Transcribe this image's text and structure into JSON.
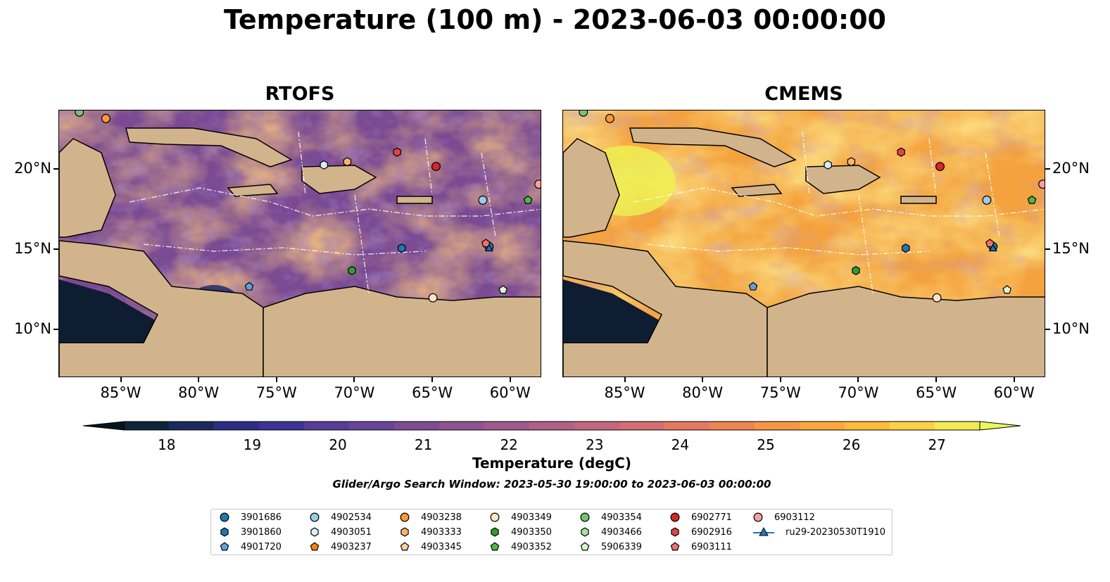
{
  "title": "Temperature (100 m) - 2023-06-03 00:00:00",
  "panels": [
    {
      "title": "RTOFS"
    },
    {
      "title": "CMEMS"
    }
  ],
  "map_extent": {
    "lon": [
      -89,
      -58
    ],
    "lat": [
      7,
      23.7
    ]
  },
  "lon_ticks": [
    {
      "lon": -85,
      "label": "85°W"
    },
    {
      "lon": -80,
      "label": "80°W"
    },
    {
      "lon": -75,
      "label": "75°W"
    },
    {
      "lon": -70,
      "label": "70°W"
    },
    {
      "lon": -65,
      "label": "65°W"
    },
    {
      "lon": -60,
      "label": "60°W"
    }
  ],
  "lat_ticks": [
    {
      "lat": 20,
      "label": "20°N"
    },
    {
      "lat": 15,
      "label": "15°N"
    },
    {
      "lat": 10,
      "label": "10°N"
    }
  ],
  "colorbar": {
    "label": "Temperature (degC)",
    "min": 18,
    "max": 27,
    "ticks": [
      "18",
      "19",
      "20",
      "21",
      "22",
      "23",
      "24",
      "25",
      "26",
      "27"
    ],
    "colors": [
      "#0d2538",
      "#1b2a5c",
      "#2c2e86",
      "#3e3494",
      "#563d96",
      "#6a4596",
      "#7d4c93",
      "#8f5390",
      "#a05a8c",
      "#b26186",
      "#c3677e",
      "#d46e72",
      "#e47963",
      "#ef8552",
      "#f79643",
      "#fca93b",
      "#fdbd3b",
      "#fbd244",
      "#f4e952"
    ],
    "extend_low": "#06141f",
    "extend_high": "#e8fa5b",
    "land": "#d2b48c",
    "shelf": "#97b6e0"
  },
  "search_window": "Glider/Argo Search Window: 2023-05-30 19:00:00 to 2023-06-03 00:00:00",
  "legend": [
    {
      "id": "3901686",
      "marker": "circle",
      "color": "#1f77b4"
    },
    {
      "id": "3901860",
      "marker": "hexagon",
      "color": "#1f77b4"
    },
    {
      "id": "4901720",
      "marker": "pentagon",
      "color": "#5fa2dd"
    },
    {
      "id": "4902534",
      "marker": "circle",
      "color": "#9ecae9"
    },
    {
      "id": "4903051",
      "marker": "hexagon",
      "color": "#d8ecf9"
    },
    {
      "id": "4903237",
      "marker": "pentagon",
      "color": "#ff7f0e"
    },
    {
      "id": "4903238",
      "marker": "circle",
      "color": "#ff9a32"
    },
    {
      "id": "4903333",
      "marker": "hexagon",
      "color": "#ffb366"
    },
    {
      "id": "4903345",
      "marker": "pentagon",
      "color": "#ffcc99"
    },
    {
      "id": "4903349",
      "marker": "circle",
      "color": "#ffe4c4"
    },
    {
      "id": "4903350",
      "marker": "hexagon",
      "color": "#2ca02c"
    },
    {
      "id": "4903352",
      "marker": "pentagon",
      "color": "#4cb84c"
    },
    {
      "id": "4903354",
      "marker": "circle",
      "color": "#74c476"
    },
    {
      "id": "4903466",
      "marker": "hexagon",
      "color": "#a8e0a0"
    },
    {
      "id": "5906339",
      "marker": "pentagon",
      "color": "#d9f5d3"
    },
    {
      "id": "6902771",
      "marker": "circle",
      "color": "#d62728"
    },
    {
      "id": "6902916",
      "marker": "hexagon",
      "color": "#e04545"
    },
    {
      "id": "6903111",
      "marker": "pentagon",
      "color": "#f07070"
    },
    {
      "id": "6903112",
      "marker": "circle",
      "color": "#f5a0a0"
    },
    {
      "id": "ru29-20230530T1910",
      "marker": "triangle-line",
      "color": "#1f77b4"
    }
  ],
  "floats": [
    {
      "id": "3901686",
      "lon": -61.4,
      "lat": 15.2
    },
    {
      "id": "3901860",
      "lon": -67.0,
      "lat": 15.1
    },
    {
      "id": "4901720",
      "lon": -76.8,
      "lat": 12.7
    },
    {
      "id": "4902534",
      "lon": -61.8,
      "lat": 18.1
    },
    {
      "id": "4903051",
      "lon": -72.0,
      "lat": 20.3
    },
    {
      "id": "4903333",
      "lon": -70.5,
      "lat": 20.5
    },
    {
      "id": "4903349",
      "lon": -65.0,
      "lat": 12.0
    },
    {
      "id": "4903350",
      "lon": -70.2,
      "lat": 13.7
    },
    {
      "id": "4903352",
      "lon": -58.9,
      "lat": 18.1
    },
    {
      "id": "4903354",
      "lon": -87.7,
      "lat": 23.6
    },
    {
      "id": "5906339",
      "lon": -60.5,
      "lat": 12.5
    },
    {
      "id": "6902771",
      "lon": -64.8,
      "lat": 20.2
    },
    {
      "id": "6902916",
      "lon": -67.3,
      "lat": 21.1
    },
    {
      "id": "6903111",
      "lon": -61.6,
      "lat": 15.4
    },
    {
      "id": "6903112",
      "lon": -58.2,
      "lat": 19.1
    },
    {
      "id": "4903238",
      "lon": -86.0,
      "lat": 23.2
    },
    {
      "id": "ru29-20230530T1910",
      "lon": -61.4,
      "lat": 15.1
    }
  ]
}
